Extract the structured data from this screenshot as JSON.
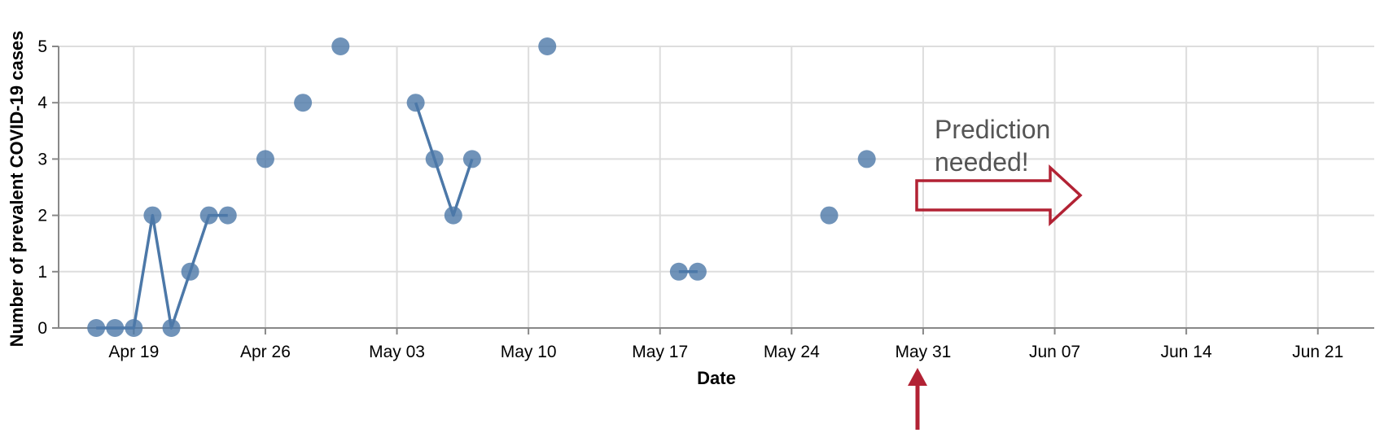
{
  "chart_data": {
    "type": "scatter",
    "title": "",
    "xlabel": "Date",
    "ylabel": "Number of prevalent COVID-19 cases",
    "x_domain": [
      "2020-04-15",
      "2020-06-24"
    ],
    "ylim": [
      0,
      5
    ],
    "x_ticks": [
      {
        "date": "2020-04-19",
        "label": "Apr 19"
      },
      {
        "date": "2020-04-26",
        "label": "Apr 26"
      },
      {
        "date": "2020-05-03",
        "label": "May 03"
      },
      {
        "date": "2020-05-10",
        "label": "May 10"
      },
      {
        "date": "2020-05-17",
        "label": "May 17"
      },
      {
        "date": "2020-05-24",
        "label": "May 24"
      },
      {
        "date": "2020-05-31",
        "label": "May 31"
      },
      {
        "date": "2020-06-07",
        "label": "Jun 07"
      },
      {
        "date": "2020-06-14",
        "label": "Jun 14"
      },
      {
        "date": "2020-06-21",
        "label": "Jun 21"
      }
    ],
    "y_ticks": [
      0,
      1,
      2,
      3,
      4,
      5
    ],
    "grid": true,
    "series_color": "#4c78a8",
    "points": [
      {
        "x": "2020-04-17",
        "y": 0
      },
      {
        "x": "2020-04-18",
        "y": 0
      },
      {
        "x": "2020-04-19",
        "y": 0
      },
      {
        "x": "2020-04-20",
        "y": 2
      },
      {
        "x": "2020-04-21",
        "y": 0
      },
      {
        "x": "2020-04-22",
        "y": 1
      },
      {
        "x": "2020-04-23",
        "y": 2
      },
      {
        "x": "2020-04-24",
        "y": 2
      },
      {
        "x": "2020-04-26",
        "y": 3
      },
      {
        "x": "2020-04-28",
        "y": 4
      },
      {
        "x": "2020-04-30",
        "y": 5
      },
      {
        "x": "2020-05-04",
        "y": 4
      },
      {
        "x": "2020-05-05",
        "y": 3
      },
      {
        "x": "2020-05-06",
        "y": 2
      },
      {
        "x": "2020-05-07",
        "y": 3
      },
      {
        "x": "2020-05-11",
        "y": 5
      },
      {
        "x": "2020-05-18",
        "y": 1
      },
      {
        "x": "2020-05-19",
        "y": 1
      },
      {
        "x": "2020-05-26",
        "y": 2
      },
      {
        "x": "2020-05-28",
        "y": 3
      }
    ],
    "line_segments": [
      [
        {
          "x": "2020-04-17",
          "y": 0
        },
        {
          "x": "2020-04-18",
          "y": 0
        },
        {
          "x": "2020-04-19",
          "y": 0
        },
        {
          "x": "2020-04-20",
          "y": 2
        },
        {
          "x": "2020-04-21",
          "y": 0
        },
        {
          "x": "2020-04-22",
          "y": 1
        },
        {
          "x": "2020-04-23",
          "y": 2
        },
        {
          "x": "2020-04-24",
          "y": 2
        }
      ],
      [
        {
          "x": "2020-05-04",
          "y": 4
        },
        {
          "x": "2020-05-05",
          "y": 3
        },
        {
          "x": "2020-05-06",
          "y": 2
        },
        {
          "x": "2020-05-07",
          "y": 3
        }
      ],
      [
        {
          "x": "2020-05-18",
          "y": 1
        },
        {
          "x": "2020-05-19",
          "y": 1
        }
      ]
    ],
    "annotation": {
      "lines": [
        "Prediction",
        "needed!"
      ],
      "marker_date": "2020-05-31",
      "arrow_color": "#b22234"
    }
  }
}
